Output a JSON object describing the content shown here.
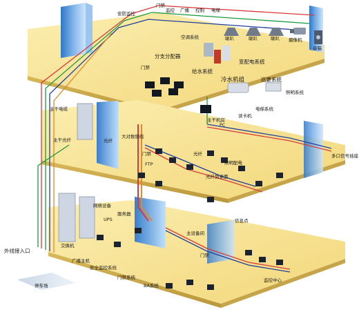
{
  "labels": {
    "door_access": "门禁",
    "security_monitor": "安防监控",
    "monitoring": "监控",
    "broadcast": "广播",
    "control": "控制",
    "elevator": "电梯",
    "horn": "喇叭",
    "camera": "摄像机",
    "speaker": "音箱",
    "hvac": "空调系统",
    "distributor": "分支分配器",
    "water_supply": "给水系统",
    "power_dist": "变配电系统",
    "chiller": "冷水机组",
    "lighting": "照明系统",
    "patrol": "巡更系统",
    "elevator_sys": "电梯系统",
    "main_cable_room": "主干机房",
    "pc": "PC",
    "card_reader": "读卡机",
    "trunk_cable": "主干电缆",
    "trunk_fiber": "主干光纤",
    "fiber": "光纤",
    "large_copper": "大对数铜缆",
    "ftp": "FTP",
    "door_floor2": "门禁",
    "cable_run": "光纤",
    "fiber_desktop": "光纤到桌面",
    "multi_port": "多口信号插座",
    "lighting_relay": "照明配电",
    "net_equipment": "网络设备",
    "ups": "UPS",
    "server": "服务器",
    "switch": "交换机",
    "broadcast_host": "广播主机",
    "security_host": "安全监控系统",
    "door_system": "门禁系统",
    "ba_system": "BA系统",
    "info_point": "信息点",
    "main_room": "主设备间",
    "door_floor1": "门禁",
    "monitor_center": "监控中心",
    "outside_entry": "外线接入口",
    "parking": "停车场"
  }
}
